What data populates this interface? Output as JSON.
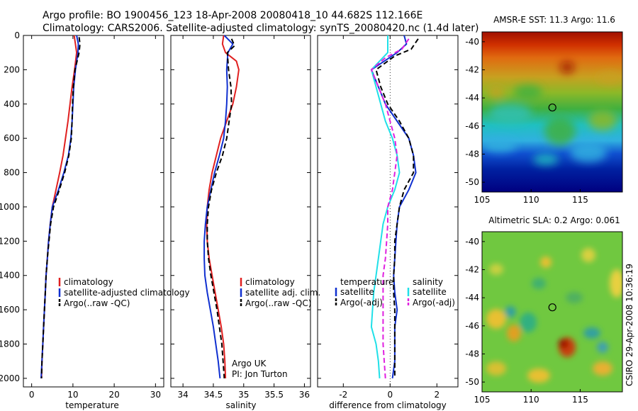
{
  "header": {
    "line1": "Argo profile: BO 1900456_123 18-Apr-2008 20080418_10 44.682S 112.166E",
    "line2": "Climatology: CARS2006. Satellite-adjusted climatology: synTS_20080420.nc (1.4d later)"
  },
  "credits": {
    "argo": "Argo UK",
    "pi": "PI: Jon Turton",
    "stamp": "CSIRO 29-Apr-2008 10:36:19"
  },
  "colors": {
    "climatology": "#e02020",
    "satellite": "#1030d0",
    "argo": "#000000",
    "salinity_sat": "#20e0e8",
    "salinity_argo": "#e020e0"
  },
  "chart_data": [
    {
      "type": "line",
      "id": "temperature",
      "xlabel": "temperature",
      "ylabel": "",
      "xlim": [
        -2,
        32
      ],
      "ylim": [
        2050,
        0
      ],
      "xticks": [
        0,
        10,
        20,
        30
      ],
      "yticks": [
        0,
        200,
        400,
        600,
        800,
        1000,
        1200,
        1400,
        1600,
        1800,
        2000
      ],
      "legend": [
        "climatology",
        "satellite-adjusted climatology",
        "Argo(..raw -QC)"
      ],
      "series": [
        {
          "name": "climatology",
          "color": "#e02020",
          "dash": false,
          "points": [
            [
              10.3,
              0
            ],
            [
              10.6,
              50
            ],
            [
              10.9,
              100
            ],
            [
              10.4,
              200
            ],
            [
              9.8,
              300
            ],
            [
              9.3,
              400
            ],
            [
              8.8,
              500
            ],
            [
              8.2,
              600
            ],
            [
              7.6,
              700
            ],
            [
              6.8,
              800
            ],
            [
              5.9,
              900
            ],
            [
              5.0,
              1000
            ],
            [
              4.5,
              1100
            ],
            [
              4.1,
              1200
            ],
            [
              3.8,
              1300
            ],
            [
              3.5,
              1400
            ],
            [
              3.3,
              1500
            ],
            [
              3.1,
              1600
            ],
            [
              2.9,
              1700
            ],
            [
              2.7,
              1800
            ],
            [
              2.5,
              1900
            ],
            [
              2.4,
              2000
            ]
          ]
        },
        {
          "name": "satellite-adjusted climatology",
          "color": "#1030d0",
          "dash": false,
          "points": [
            [
              10.9,
              0
            ],
            [
              11.3,
              50
            ],
            [
              11.2,
              100
            ],
            [
              10.6,
              200
            ],
            [
              10.2,
              300
            ],
            [
              10.0,
              400
            ],
            [
              9.8,
              500
            ],
            [
              9.5,
              600
            ],
            [
              8.9,
              700
            ],
            [
              7.8,
              800
            ],
            [
              6.5,
              900
            ],
            [
              5.0,
              1000
            ],
            [
              4.5,
              1100
            ],
            [
              4.1,
              1200
            ],
            [
              3.8,
              1300
            ],
            [
              3.5,
              1400
            ],
            [
              3.3,
              1500
            ],
            [
              3.1,
              1600
            ],
            [
              2.9,
              1700
            ],
            [
              2.7,
              1800
            ],
            [
              2.5,
              1900
            ],
            [
              2.3,
              2000
            ]
          ]
        },
        {
          "name": "Argo(..raw -QC)",
          "color": "#000000",
          "dash": true,
          "points": [
            [
              11.5,
              10
            ],
            [
              11.7,
              50
            ],
            [
              11.5,
              100
            ],
            [
              10.5,
              200
            ],
            [
              10.1,
              300
            ],
            [
              9.9,
              400
            ],
            [
              9.8,
              500
            ],
            [
              9.6,
              600
            ],
            [
              9.0,
              700
            ],
            [
              8.0,
              800
            ],
            [
              6.7,
              900
            ],
            [
              5.3,
              1000
            ],
            [
              4.6,
              1100
            ],
            [
              4.2,
              1200
            ],
            [
              3.8,
              1300
            ],
            [
              3.5,
              1400
            ],
            [
              3.3,
              1500
            ],
            [
              3.1,
              1600
            ],
            [
              2.9,
              1700
            ],
            [
              2.7,
              1800
            ],
            [
              2.5,
              1900
            ],
            [
              2.4,
              2000
            ]
          ]
        }
      ]
    },
    {
      "type": "line",
      "id": "salinity",
      "xlabel": "salinity",
      "ylabel": "",
      "xlim": [
        33.8,
        36.1
      ],
      "ylim": [
        2050,
        0
      ],
      "xticks": [
        34,
        34.5,
        35,
        35.5,
        36
      ],
      "legend": [
        "climatology",
        "satellite adj. clim.",
        "Argo(..raw -QC)"
      ],
      "series": [
        {
          "name": "climatology",
          "color": "#e02020",
          "dash": false,
          "points": [
            [
              34.67,
              0
            ],
            [
              34.65,
              50
            ],
            [
              34.7,
              100
            ],
            [
              34.88,
              150
            ],
            [
              34.92,
              200
            ],
            [
              34.88,
              300
            ],
            [
              34.82,
              400
            ],
            [
              34.72,
              500
            ],
            [
              34.62,
              600
            ],
            [
              34.55,
              700
            ],
            [
              34.48,
              800
            ],
            [
              34.43,
              900
            ],
            [
              34.4,
              1000
            ],
            [
              34.39,
              1100
            ],
            [
              34.4,
              1200
            ],
            [
              34.43,
              1300
            ],
            [
              34.48,
              1400
            ],
            [
              34.53,
              1500
            ],
            [
              34.58,
              1600
            ],
            [
              34.63,
              1700
            ],
            [
              34.67,
              1800
            ],
            [
              34.69,
              1900
            ],
            [
              34.7,
              2000
            ]
          ]
        },
        {
          "name": "satellite adj. clim.",
          "color": "#1030d0",
          "dash": false,
          "points": [
            [
              34.68,
              0
            ],
            [
              34.82,
              50
            ],
            [
              34.74,
              100
            ],
            [
              34.72,
              200
            ],
            [
              34.73,
              300
            ],
            [
              34.72,
              400
            ],
            [
              34.7,
              500
            ],
            [
              34.67,
              600
            ],
            [
              34.6,
              700
            ],
            [
              34.52,
              800
            ],
            [
              34.46,
              900
            ],
            [
              34.4,
              1000
            ],
            [
              34.37,
              1100
            ],
            [
              34.35,
              1200
            ],
            [
              34.35,
              1300
            ],
            [
              34.36,
              1400
            ],
            [
              34.4,
              1500
            ],
            [
              34.45,
              1600
            ],
            [
              34.5,
              1700
            ],
            [
              34.54,
              1800
            ],
            [
              34.58,
              1900
            ],
            [
              34.61,
              2000
            ]
          ]
        },
        {
          "name": "Argo(..raw -QC)",
          "color": "#000000",
          "dash": true,
          "points": [
            [
              34.8,
              20
            ],
            [
              34.85,
              60
            ],
            [
              34.73,
              100
            ],
            [
              34.75,
              200
            ],
            [
              34.79,
              300
            ],
            [
              34.8,
              400
            ],
            [
              34.76,
              500
            ],
            [
              34.72,
              600
            ],
            [
              34.65,
              700
            ],
            [
              34.55,
              800
            ],
            [
              34.47,
              900
            ],
            [
              34.42,
              1000
            ],
            [
              34.4,
              1100
            ],
            [
              34.4,
              1200
            ],
            [
              34.42,
              1300
            ],
            [
              34.46,
              1400
            ],
            [
              34.51,
              1500
            ],
            [
              34.56,
              1600
            ],
            [
              34.6,
              1700
            ],
            [
              34.64,
              1800
            ],
            [
              34.66,
              1900
            ],
            [
              34.68,
              2000
            ]
          ]
        }
      ]
    },
    {
      "type": "line",
      "id": "difference",
      "xlabel": "difference from climatology",
      "ylabel": "",
      "xlim": [
        -3.1,
        2.9
      ],
      "ylim": [
        2050,
        0
      ],
      "xticks": [
        -2,
        0,
        2
      ],
      "legend_title_left": "temperature",
      "legend_title_right": "salinity",
      "legend": [
        "satellite",
        "Argo(-adj)",
        "satellite",
        "Argo(-adj)"
      ],
      "series": [
        {
          "name": "temperature satellite",
          "color": "#1030d0",
          "dash": false,
          "points": [
            [
              0.6,
              0
            ],
            [
              0.7,
              50
            ],
            [
              0.3,
              100
            ],
            [
              -0.8,
              200
            ],
            [
              -0.5,
              300
            ],
            [
              -0.2,
              400
            ],
            [
              0.3,
              500
            ],
            [
              0.8,
              600
            ],
            [
              1.0,
              700
            ],
            [
              1.1,
              800
            ],
            [
              0.8,
              900
            ],
            [
              0.4,
              1000
            ],
            [
              0.3,
              1100
            ],
            [
              0.25,
              1200
            ],
            [
              0.2,
              1300
            ],
            [
              0.15,
              1400
            ],
            [
              0.2,
              1500
            ],
            [
              0.3,
              1600
            ],
            [
              0.2,
              1700
            ],
            [
              0.2,
              1800
            ],
            [
              0.2,
              1900
            ],
            [
              0.1,
              2000
            ]
          ]
        },
        {
          "name": "temperature Argo(-adj)",
          "color": "#000000",
          "dash": true,
          "points": [
            [
              1.2,
              20
            ],
            [
              0.9,
              80
            ],
            [
              0.2,
              120
            ],
            [
              -0.6,
              200
            ],
            [
              -0.4,
              300
            ],
            [
              -0.1,
              400
            ],
            [
              0.4,
              500
            ],
            [
              0.8,
              600
            ],
            [
              1.0,
              700
            ],
            [
              1.0,
              800
            ],
            [
              0.6,
              900
            ],
            [
              0.4,
              1000
            ],
            [
              0.3,
              1100
            ],
            [
              0.2,
              1200
            ],
            [
              0.2,
              1300
            ],
            [
              0.15,
              1400
            ],
            [
              0.15,
              1500
            ],
            [
              0.2,
              1600
            ],
            [
              0.2,
              1700
            ],
            [
              0.2,
              1800
            ],
            [
              0.2,
              1900
            ],
            [
              0.2,
              2000
            ]
          ]
        },
        {
          "name": "salinity satellite",
          "color": "#20e0e8",
          "dash": false,
          "points": [
            [
              -0.1,
              0
            ],
            [
              -0.1,
              100
            ],
            [
              -0.8,
              200
            ],
            [
              -0.6,
              300
            ],
            [
              -0.4,
              400
            ],
            [
              -0.2,
              500
            ],
            [
              0.1,
              600
            ],
            [
              0.3,
              700
            ],
            [
              0.4,
              800
            ],
            [
              0.2,
              900
            ],
            [
              -0.1,
              1000
            ],
            [
              -0.3,
              1100
            ],
            [
              -0.4,
              1200
            ],
            [
              -0.5,
              1300
            ],
            [
              -0.6,
              1400
            ],
            [
              -0.7,
              1500
            ],
            [
              -0.75,
              1600
            ],
            [
              -0.8,
              1700
            ],
            [
              -0.6,
              1800
            ],
            [
              -0.5,
              1900
            ],
            [
              -0.45,
              2000
            ]
          ]
        },
        {
          "name": "salinity Argo(-adj)",
          "color": "#e020e0",
          "dash": true,
          "points": [
            [
              0.8,
              20
            ],
            [
              0.5,
              80
            ],
            [
              -0.2,
              130
            ],
            [
              -0.8,
              200
            ],
            [
              -0.5,
              300
            ],
            [
              -0.2,
              400
            ],
            [
              0.0,
              500
            ],
            [
              0.2,
              600
            ],
            [
              0.3,
              700
            ],
            [
              0.2,
              800
            ],
            [
              0.1,
              900
            ],
            [
              -0.1,
              1000
            ],
            [
              -0.1,
              1100
            ],
            [
              -0.15,
              1200
            ],
            [
              -0.2,
              1300
            ],
            [
              -0.3,
              1400
            ],
            [
              -0.3,
              1500
            ],
            [
              -0.3,
              1600
            ],
            [
              -0.3,
              1700
            ],
            [
              -0.3,
              1800
            ],
            [
              -0.25,
              1900
            ],
            [
              -0.2,
              2000
            ]
          ]
        }
      ]
    },
    {
      "type": "heatmap",
      "id": "sst-map",
      "title": "AMSR-E SST: 11.3 Argo: 11.6",
      "xticks": [
        105,
        110,
        115
      ],
      "yticks": [
        -40,
        -42,
        -44,
        -46,
        -48,
        -50
      ],
      "xlim": [
        105,
        119.3
      ],
      "ylim": [
        -50.7,
        -39.3
      ],
      "marker": {
        "lon": 112.166,
        "lat": -44.682
      }
    },
    {
      "type": "heatmap",
      "id": "sla-map",
      "title": "Altimetric SLA: 0.2 Argo: 0.061",
      "xticks": [
        105,
        110,
        115
      ],
      "yticks": [
        -40,
        -42,
        -44,
        -46,
        -48,
        -50
      ],
      "xlim": [
        105,
        119.3
      ],
      "ylim": [
        -50.7,
        -39.3
      ],
      "marker": {
        "lon": 112.166,
        "lat": -44.682
      }
    }
  ]
}
